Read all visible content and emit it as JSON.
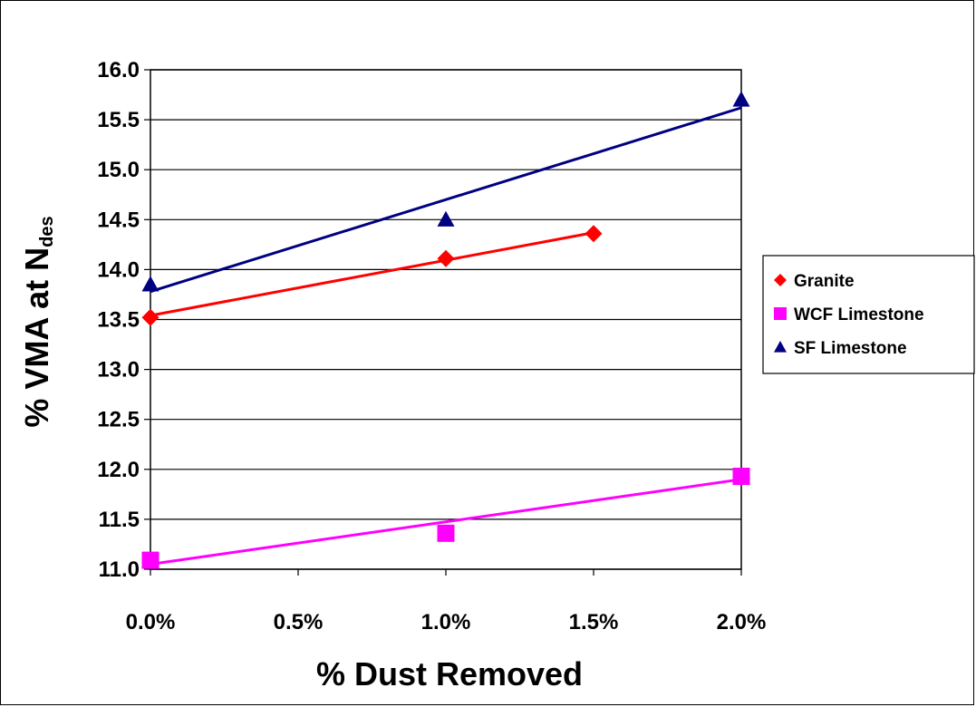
{
  "chart_data": {
    "type": "scatter",
    "xlabel": "% Dust Removed",
    "ylabel_main": "% VMA at N",
    "ylabel_sub": "des",
    "xlim": [
      0,
      0.02
    ],
    "ylim": [
      11.0,
      16.0
    ],
    "x_ticks": [
      0,
      0.005,
      0.01,
      0.015,
      0.02
    ],
    "x_tick_labels": [
      "0.0%",
      "0.5%",
      "1.0%",
      "1.5%",
      "2.0%"
    ],
    "y_ticks": [
      11.0,
      11.5,
      12.0,
      12.5,
      13.0,
      13.5,
      14.0,
      14.5,
      15.0,
      15.5,
      16.0
    ],
    "y_tick_labels": [
      "11.0",
      "11.5",
      "12.0",
      "12.5",
      "13.0",
      "13.5",
      "14.0",
      "14.5",
      "15.0",
      "15.5",
      "16.0"
    ],
    "grid": "horizontal",
    "legend_position": "right",
    "series": [
      {
        "name": "Granite",
        "marker": "diamond",
        "color": "#ff0000",
        "x": [
          0,
          0.01,
          0.015
        ],
        "y": [
          13.52,
          14.11,
          14.36
        ],
        "trendline": [
          [
            0,
            13.54
          ],
          [
            0.015,
            14.37
          ]
        ]
      },
      {
        "name": "WCF Limestone",
        "marker": "square",
        "color": "#ff00ff",
        "x": [
          0,
          0.01,
          0.02
        ],
        "y": [
          11.09,
          11.36,
          11.93
        ],
        "trendline": [
          [
            0,
            11.05
          ],
          [
            0.02,
            11.9
          ]
        ]
      },
      {
        "name": "SF Limestone",
        "marker": "triangle",
        "color": "#000080",
        "x": [
          0,
          0.01,
          0.02
        ],
        "y": [
          13.85,
          14.5,
          15.7
        ],
        "trendline": [
          [
            0,
            13.78
          ],
          [
            0.02,
            15.62
          ]
        ]
      }
    ]
  }
}
